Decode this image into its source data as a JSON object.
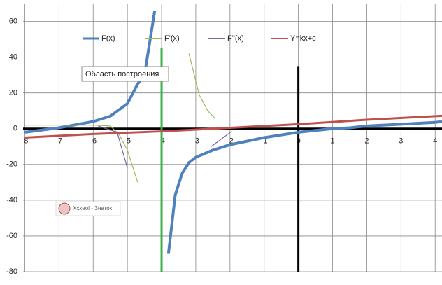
{
  "chart_data": {
    "type": "line",
    "xlim": [
      -8.05,
      4.2
    ],
    "ylim": [
      -80,
      70
    ],
    "xticks": [
      -8,
      -7,
      -6,
      -5,
      -4,
      -3,
      -2,
      -1,
      0,
      1,
      2,
      3,
      4
    ],
    "yticks": [
      -80,
      -60,
      -40,
      -20,
      0,
      20,
      40,
      60
    ],
    "grid": true,
    "legend": "top",
    "series": [
      {
        "name": "F(x)",
        "color": "#4f81bd",
        "width": 4,
        "x": [
          -8,
          -7,
          -6,
          -5.5,
          -5,
          -4.7,
          -4.5,
          -4.2,
          -4,
          -3.8,
          -3.6,
          -3.4,
          -3.2,
          -3,
          -2.5,
          -2,
          -1.5,
          -1,
          -0.5,
          0,
          0.5,
          1,
          1.5,
          2,
          3,
          4,
          4.2
        ],
        "values": [
          -2,
          0.5,
          4,
          7,
          14,
          25,
          30,
          66,
          null,
          -70,
          -37,
          -25,
          -19,
          -16,
          -12,
          -9,
          -7,
          -5,
          -3.5,
          -2,
          -1,
          0,
          0.5,
          1.5,
          2.5,
          3.5,
          4
        ]
      },
      {
        "name": "F'(x)",
        "color": "#9bbb59",
        "width": 1.2,
        "x": [
          -8,
          -7,
          -6,
          -5.5,
          -5.25,
          -5,
          -4.7,
          -4,
          -3.2,
          -2.9,
          -2.65,
          -2.45
        ],
        "values": [
          2,
          2,
          2,
          1.5,
          -3,
          -12,
          -30,
          null,
          42,
          19,
          10,
          6
        ]
      },
      {
        "name": "F''(x)",
        "color": "#8064a2",
        "width": 1.2,
        "x": [
          -5.85,
          -5.3,
          -5,
          -4,
          -2.55,
          -1.95
        ],
        "values": [
          1.5,
          -2,
          -22,
          null,
          -10,
          -1.5
        ]
      },
      {
        "name": "Y=kx+c",
        "color": "#c0504d",
        "width": 3,
        "x": [
          -8,
          -6,
          -4,
          -2,
          0,
          2,
          4,
          4.2
        ],
        "values": [
          -5,
          -3,
          -1.5,
          0.5,
          2.5,
          5,
          7,
          7.2
        ]
      }
    ],
    "vlines": [
      {
        "x": -4,
        "y": [
          -80,
          45
        ],
        "color": "#3cb04a"
      },
      {
        "x": 0,
        "y": [
          -80,
          35
        ],
        "color": "#000000"
      }
    ],
    "tooltip": "Область построения",
    "watermark": "Xxxeol - Знаток"
  }
}
